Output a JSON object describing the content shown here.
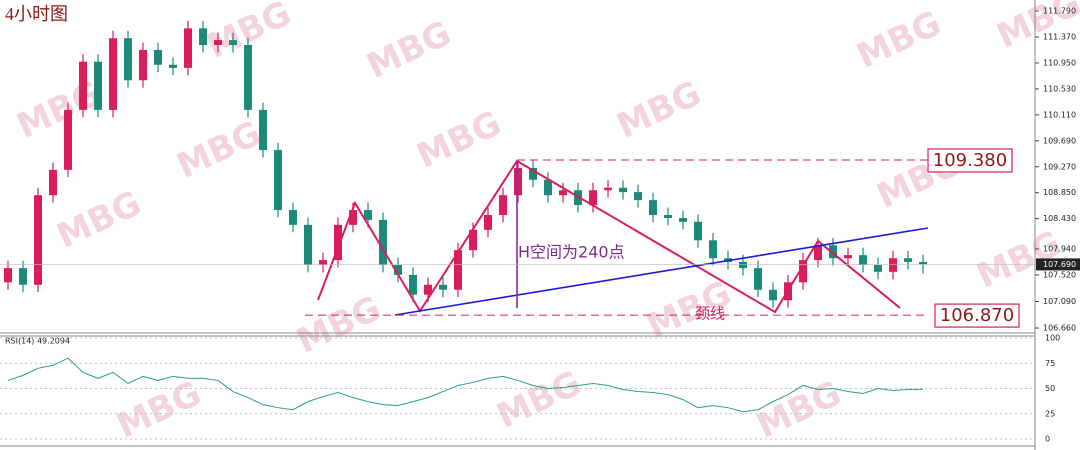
{
  "chart_data": {
    "type": "candlestick",
    "title": "4小时图",
    "watermark": "MBG",
    "up_color": "#d81e5b",
    "down_color": "#1b8a7a",
    "ylim": [
      106.58,
      111.92
    ],
    "yticks": [
      {
        "value": 111.79,
        "label": "111.790"
      },
      {
        "value": 111.37,
        "label": "111.370"
      },
      {
        "value": 110.95,
        "label": "110.950"
      },
      {
        "value": 110.53,
        "label": "110.530"
      },
      {
        "value": 110.11,
        "label": "110.110"
      },
      {
        "value": 109.69,
        "label": "109.690"
      },
      {
        "value": 109.27,
        "label": "109.270"
      },
      {
        "value": 108.85,
        "label": "108.850"
      },
      {
        "value": 108.43,
        "label": "108.430"
      },
      {
        "value": 107.94,
        "label": "107.940"
      },
      {
        "value": 107.52,
        "label": "107.520"
      },
      {
        "value": 107.09,
        "label": "107.090"
      },
      {
        "value": 106.66,
        "label": "106.660"
      }
    ],
    "open": [
      107.4,
      107.63,
      107.36,
      108.81,
      109.22,
      110.19,
      110.97,
      110.19,
      111.35,
      110.67,
      111.16,
      110.92,
      110.87,
      111.51,
      111.24,
      111.32,
      111.24,
      110.19,
      109.54,
      108.57,
      108.33,
      107.68,
      107.76,
      108.33,
      108.57,
      108.41,
      107.68,
      107.52,
      107.2,
      107.36,
      107.28,
      107.92,
      108.25,
      108.49,
      108.81,
      109.25,
      109.06,
      108.81,
      108.89,
      108.65,
      108.89,
      108.93,
      108.86,
      108.73,
      108.49,
      108.44,
      108.38,
      108.08,
      107.79,
      107.73,
      107.63,
      107.28,
      107.11,
      107.4,
      107.76,
      108.0,
      107.79,
      107.84,
      107.68,
      107.57,
      107.79,
      107.73
    ],
    "high": [
      107.75,
      107.75,
      108.93,
      109.34,
      110.31,
      111.09,
      111.09,
      111.47,
      111.47,
      111.28,
      111.28,
      111.04,
      111.63,
      111.63,
      111.44,
      111.44,
      111.36,
      110.31,
      109.66,
      108.69,
      108.45,
      107.88,
      108.45,
      108.69,
      108.69,
      108.53,
      107.8,
      107.64,
      107.48,
      107.48,
      108.04,
      108.37,
      108.61,
      108.93,
      109.37,
      109.37,
      109.18,
      109.01,
      109.01,
      109.01,
      109.05,
      109.05,
      108.98,
      108.85,
      108.61,
      108.56,
      108.5,
      108.2,
      107.91,
      107.85,
      107.75,
      107.4,
      107.52,
      107.88,
      108.12,
      108.12,
      107.96,
      107.96,
      107.8,
      107.91,
      107.91,
      107.85
    ],
    "low": [
      107.28,
      107.24,
      107.24,
      108.69,
      109.1,
      110.07,
      110.07,
      110.07,
      110.55,
      110.55,
      110.8,
      110.75,
      110.75,
      111.12,
      111.12,
      111.12,
      110.07,
      109.42,
      108.45,
      108.21,
      107.56,
      107.56,
      107.64,
      108.21,
      108.29,
      107.56,
      107.4,
      107.08,
      107.08,
      107.16,
      107.16,
      107.8,
      108.13,
      108.37,
      108.69,
      108.94,
      108.69,
      108.69,
      108.53,
      108.53,
      108.77,
      108.74,
      108.61,
      108.37,
      108.32,
      108.26,
      107.96,
      107.67,
      107.61,
      107.51,
      107.16,
      106.99,
      106.99,
      107.28,
      107.64,
      107.67,
      107.67,
      107.56,
      107.45,
      107.45,
      107.61,
      107.54
    ],
    "close": [
      107.63,
      107.36,
      108.81,
      109.22,
      110.19,
      110.97,
      110.19,
      111.35,
      110.67,
      111.16,
      110.92,
      110.87,
      111.51,
      111.24,
      111.32,
      111.24,
      110.19,
      109.54,
      108.57,
      108.33,
      107.68,
      107.76,
      108.33,
      108.57,
      108.41,
      107.68,
      107.52,
      107.2,
      107.36,
      107.28,
      107.92,
      108.25,
      108.49,
      108.81,
      109.25,
      109.06,
      108.81,
      108.89,
      108.65,
      108.89,
      108.93,
      108.86,
      108.73,
      108.49,
      108.44,
      108.38,
      108.08,
      107.79,
      107.73,
      107.63,
      107.28,
      107.11,
      107.4,
      107.76,
      108.0,
      107.79,
      107.84,
      107.68,
      107.57,
      107.79,
      107.73,
      107.69
    ],
    "last_price": {
      "value": 107.69,
      "label": "107.690"
    },
    "levels": [
      {
        "value": 109.38,
        "label": "109.380"
      },
      {
        "value": 106.87,
        "label": "106.870"
      }
    ],
    "annotations": [
      "H空间为240点",
      "颈线"
    ],
    "rsi": {
      "label": "RSI(14) 49.2094",
      "color": "#2a9d8f",
      "ylim": [
        0,
        100
      ],
      "yticks": [
        0,
        25,
        50,
        75,
        100
      ],
      "values": [
        58,
        63,
        70,
        73,
        80,
        66,
        60,
        66,
        55,
        62,
        58,
        62,
        60,
        60,
        58,
        47,
        41,
        34,
        31,
        29,
        37,
        42,
        46,
        41,
        37,
        34,
        33,
        37,
        41,
        47,
        53,
        56,
        60,
        62,
        58,
        53,
        50,
        51,
        53,
        55,
        53,
        49,
        47,
        46,
        44,
        39,
        31,
        33,
        31,
        27,
        29,
        37,
        44,
        53,
        49,
        50,
        47,
        45,
        50,
        48,
        49,
        49.2094
      ]
    }
  }
}
